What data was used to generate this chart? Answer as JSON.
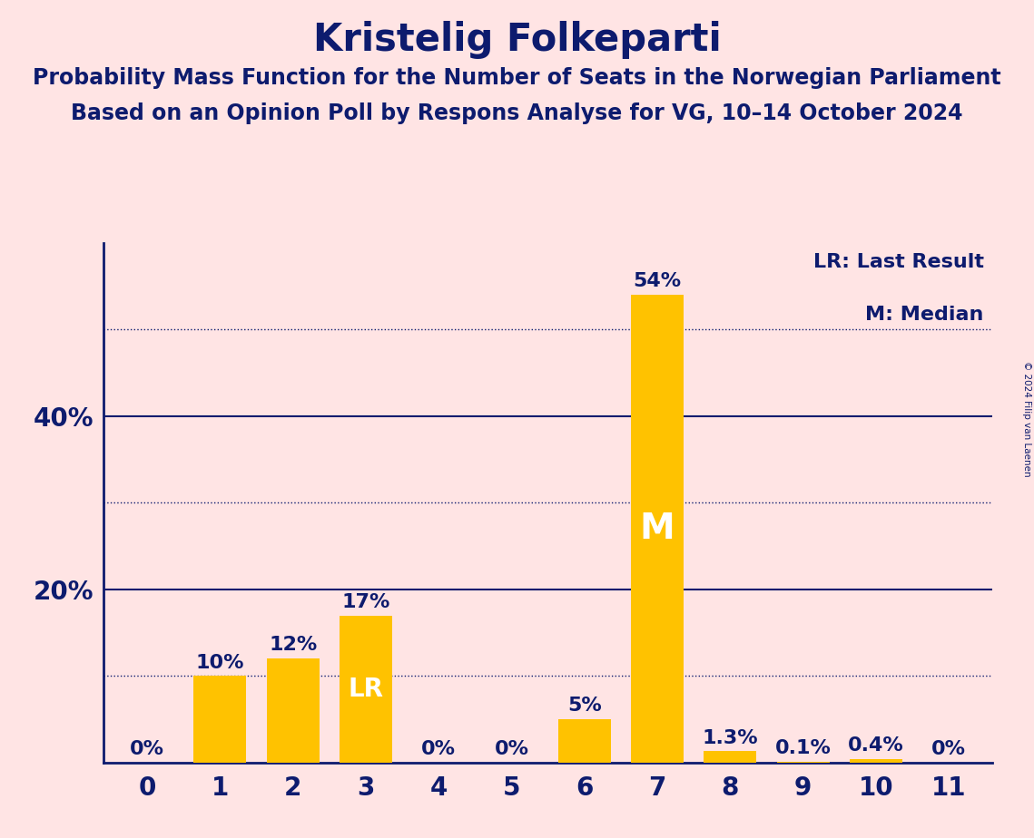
{
  "title": "Kristelig Folkeparti",
  "subtitle1": "Probability Mass Function for the Number of Seats in the Norwegian Parliament",
  "subtitle2": "Based on an Opinion Poll by Respons Analyse for VG, 10–14 October 2024",
  "copyright": "© 2024 Filip van Laenen",
  "categories": [
    0,
    1,
    2,
    3,
    4,
    5,
    6,
    7,
    8,
    9,
    10,
    11
  ],
  "values": [
    0.0,
    10.0,
    12.0,
    17.0,
    0.0,
    0.0,
    5.0,
    54.0,
    1.3,
    0.1,
    0.4,
    0.0
  ],
  "bar_color": "#FFC200",
  "background_color": "#FFE4E4",
  "text_color": "#0D1B6E",
  "bar_labels": [
    "0%",
    "10%",
    "12%",
    "17%",
    "0%",
    "0%",
    "5%",
    "54%",
    "1.3%",
    "0.1%",
    "0.4%",
    "0%"
  ],
  "lr_index": 3,
  "median_index": 7,
  "legend_lr": "LR: Last Result",
  "legend_m": "M: Median",
  "ylim": [
    0,
    60
  ],
  "solid_yticks": [
    20,
    40
  ],
  "dotted_yticks": [
    10,
    30,
    50
  ],
  "title_fontsize": 30,
  "subtitle_fontsize": 17,
  "bar_label_fontsize": 16,
  "axis_tick_fontsize": 20,
  "legend_fontsize": 16,
  "inside_label_fontsize_M": 28,
  "inside_label_fontsize_LR": 20
}
